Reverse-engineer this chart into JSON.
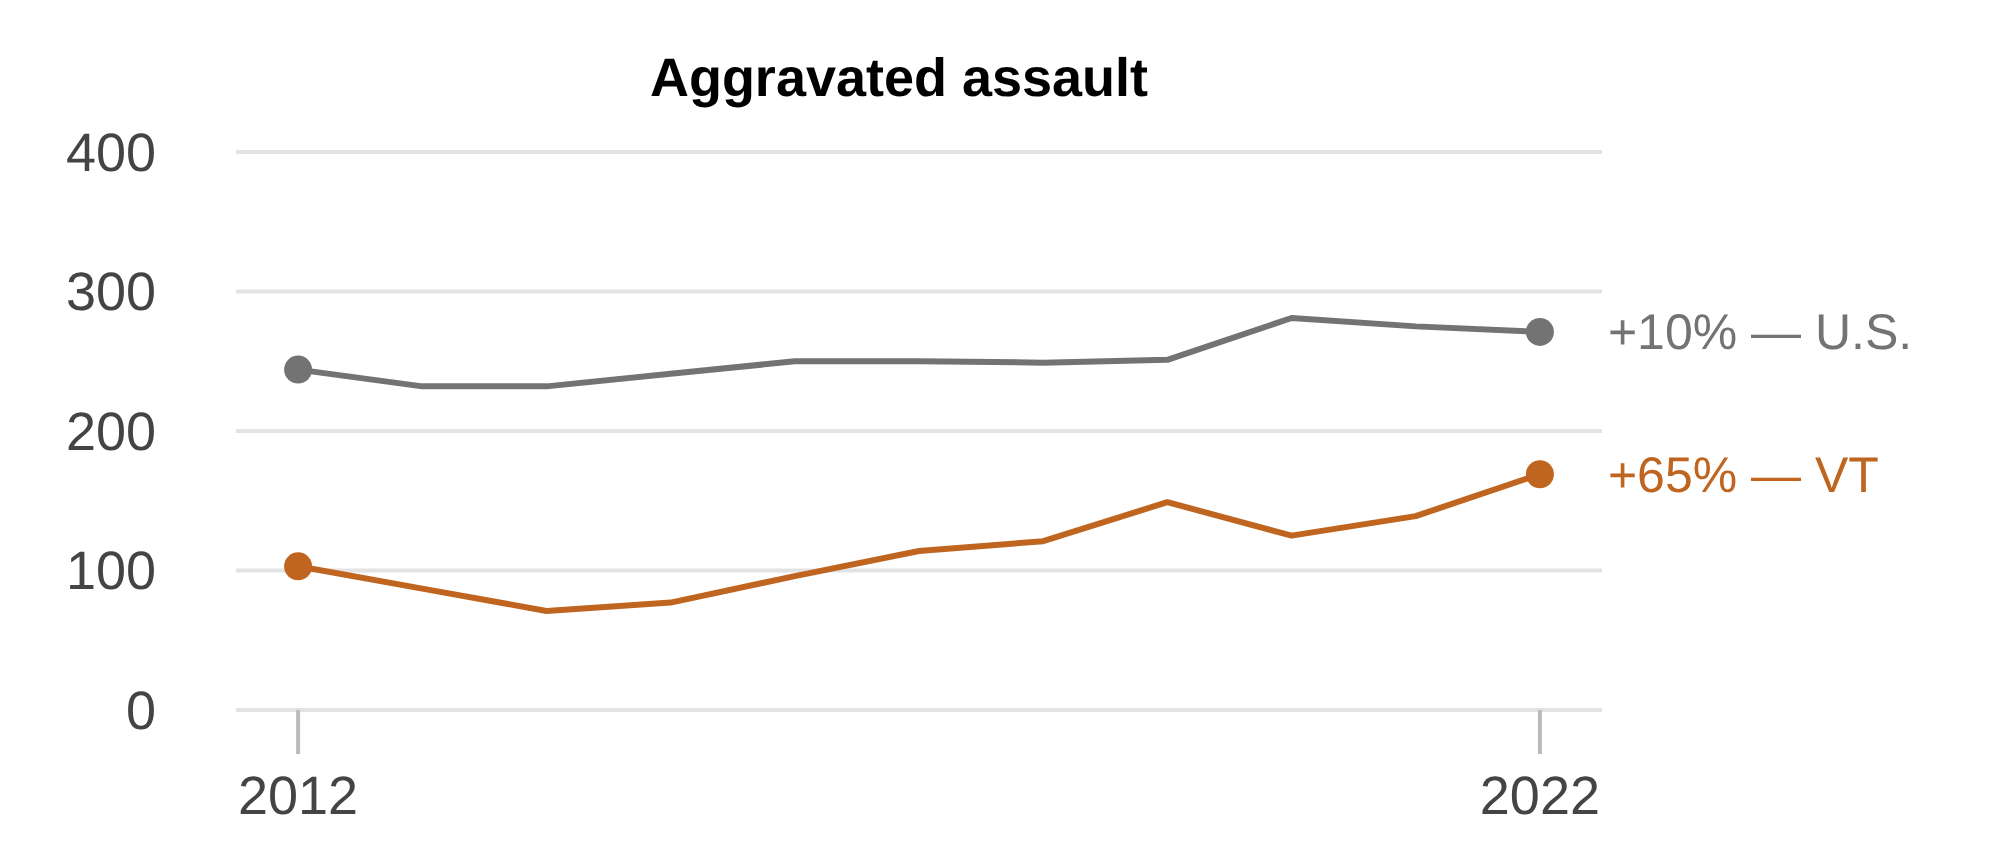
{
  "chart_data": {
    "type": "line",
    "title": "Aggravated assault",
    "x": [
      2012,
      2013,
      2014,
      2015,
      2016,
      2017,
      2018,
      2019,
      2020,
      2021,
      2022
    ],
    "series": [
      {
        "name": "+10% — U.S.",
        "color": "#737373",
        "marker": "none",
        "values": [
          244,
          232,
          232,
          241,
          250,
          250,
          249,
          251,
          281,
          275,
          271
        ]
      },
      {
        "name": "+65% — VT",
        "color": "#c0651f",
        "marker": "none",
        "values": [
          103,
          87,
          71,
          77,
          96,
          114,
          121,
          149,
          125,
          139,
          169
        ]
      },
      {
        "type": "scatter",
        "color": "#737373",
        "marker": "circle",
        "values": [
          244,
          null,
          null,
          null,
          null,
          null,
          null,
          null,
          null,
          null,
          271
        ]
      },
      {
        "type": "scatter",
        "color": "#c0651f",
        "marker": "circle",
        "values": [
          103,
          null,
          null,
          null,
          null,
          null,
          null,
          null,
          null,
          null,
          169
        ]
      }
    ],
    "xlim": [
      2011.5,
      2022.5
    ],
    "xticks": [
      2012,
      2022
    ],
    "ylim": [
      0,
      400
    ],
    "yticks": [
      0,
      100,
      200,
      300,
      400
    ],
    "grid": "y",
    "line_style": "solid",
    "legend": "right"
  }
}
